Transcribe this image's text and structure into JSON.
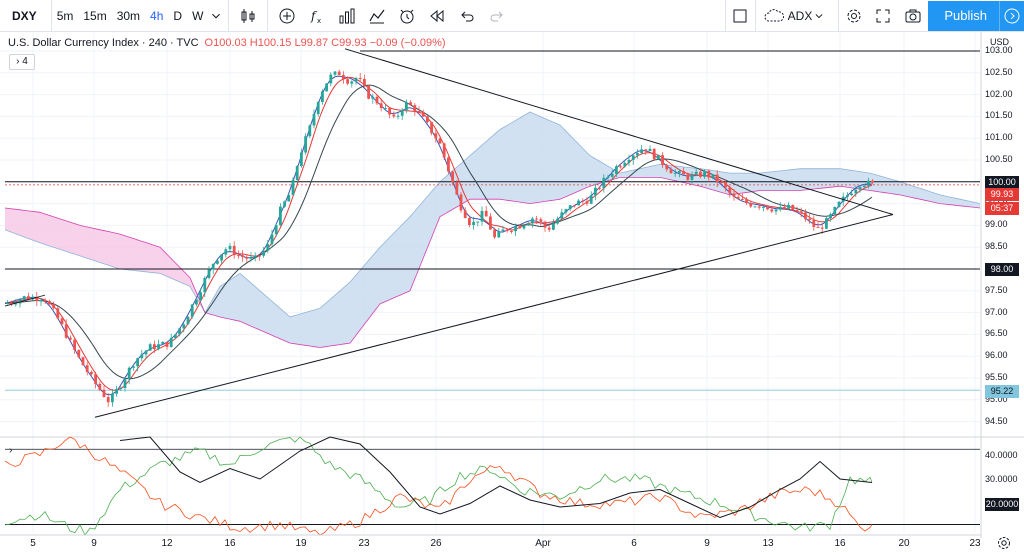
{
  "toolbar": {
    "symbol": "DXY",
    "intervals": [
      "5m",
      "15m",
      "30m",
      "4h",
      "D",
      "W"
    ],
    "active_interval": "4h",
    "adx_label": "ADX",
    "publish_label": "Publish"
  },
  "legend": {
    "title": "U.S. Dollar Currency Index · 240 · TVC",
    "open": "O100.03",
    "high": "H100.15",
    "low": "L99.87",
    "close": "C99.93",
    "change": "−0.09 (−0.09%)"
  },
  "collapse_label": "4",
  "price_axis": {
    "currency": "USD",
    "ticks": [
      "103.00",
      "102.50",
      "102.00",
      "101.50",
      "101.00",
      "100.50",
      "100.00",
      "99.50",
      "99.00",
      "98.50",
      "98.00",
      "97.50",
      "97.00",
      "96.50",
      "96.00",
      "95.50",
      "95.00",
      "94.50"
    ],
    "line_100": "100.00",
    "line_98": "98.00",
    "line_9522": "95.22",
    "last_price": "99.93",
    "countdown": "05:37"
  },
  "adx_axis": {
    "ticks": [
      "40.0000",
      "30.0000",
      "20.0000"
    ]
  },
  "time_axis": [
    "5",
    "9",
    "12",
    "16",
    "19",
    "23",
    "26",
    "Apr",
    "6",
    "9",
    "13",
    "16",
    "20",
    "23"
  ],
  "colors": {
    "up": "#26a69a",
    "down": "#ef5350",
    "cloud_up": "#c9dcef",
    "cloud_down": "#f7c9e6",
    "ma_blue": "#3f51b5",
    "ma_red": "#e53935",
    "ma_dark": "#37474f",
    "adx_line": "#131722",
    "di_plus": "#4caf50",
    "di_minus": "#f4511e",
    "price_label": "#e53935",
    "level_label": "#81c6dd"
  }
}
